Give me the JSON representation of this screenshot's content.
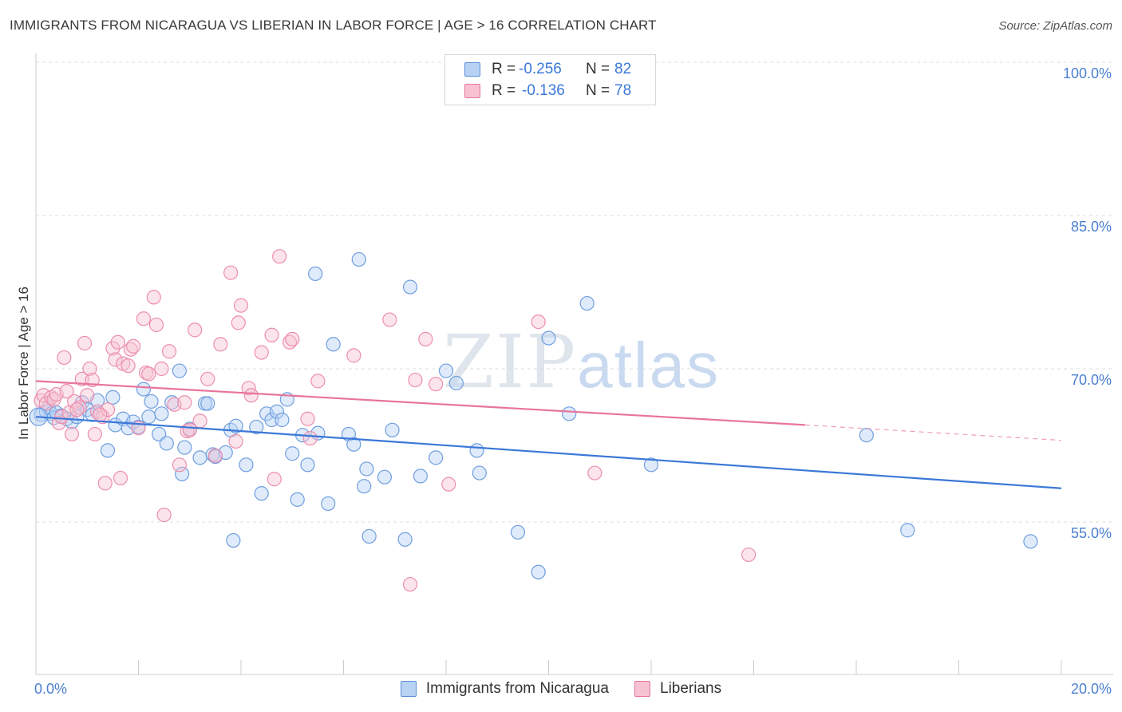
{
  "title": "IMMIGRANTS FROM NICARAGUA VS LIBERIAN IN LABOR FORCE | AGE > 16 CORRELATION CHART",
  "source": "Source: ZipAtlas.com",
  "watermark": {
    "zip": "ZIP",
    "atlas": "atlas"
  },
  "colors": {
    "blue": "#3b78d8",
    "blue_fill": "#b8d2f3",
    "pink": "#e8749a",
    "pink_fill": "#f7c3d3",
    "grid": "#dddddd"
  },
  "legend": {
    "rows": [
      {
        "r_label": "R =",
        "r_value": "-0.256",
        "n_label": "N =",
        "n_value": "82"
      },
      {
        "r_label": "R =",
        "r_value": "-0.136",
        "n_label": "N =",
        "n_value": "78"
      }
    ]
  },
  "bottom_legend": {
    "series1": "Immigrants from Nicaragua",
    "series2": "Liberians"
  },
  "chart_data": {
    "type": "scatter",
    "xlabel": "",
    "ylabel": "In Labor Force | Age > 16",
    "xlim": [
      0,
      20
    ],
    "ylim": [
      40,
      105
    ],
    "x_tick_labels": [
      {
        "value": 0,
        "label": "0.0%"
      },
      {
        "value": 20,
        "label": "20.0%"
      }
    ],
    "y_ticks": [
      {
        "value": 100,
        "label": "100.0%"
      },
      {
        "value": 85,
        "label": "85.0%"
      },
      {
        "value": 70,
        "label": "70.0%"
      },
      {
        "value": 55,
        "label": "55.0%"
      }
    ],
    "grid": "horizontal dashed",
    "series": [
      {
        "name": "Immigrants from Nicaragua",
        "color": "#3b78d8",
        "trend": {
          "x": [
            0,
            20
          ],
          "y": [
            65.3,
            58.3
          ],
          "dashed_from": null
        },
        "points": [
          [
            0.1,
            65.5
          ],
          [
            0.2,
            65.8
          ],
          [
            0.25,
            66.2
          ],
          [
            0.3,
            65.6
          ],
          [
            0.35,
            65.2
          ],
          [
            0.4,
            65.7
          ],
          [
            0.5,
            65.4
          ],
          [
            0.6,
            65.1
          ],
          [
            0.7,
            64.8
          ],
          [
            0.8,
            65.3
          ],
          [
            0.9,
            66.7
          ],
          [
            1.0,
            66.0
          ],
          [
            1.1,
            65.5
          ],
          [
            1.2,
            66.9
          ],
          [
            1.4,
            62.0
          ],
          [
            1.5,
            67.2
          ],
          [
            1.55,
            64.5
          ],
          [
            1.7,
            65.1
          ],
          [
            1.8,
            64.2
          ],
          [
            1.9,
            64.8
          ],
          [
            2.0,
            64.3
          ],
          [
            2.1,
            68.0
          ],
          [
            2.2,
            65.3
          ],
          [
            2.25,
            66.8
          ],
          [
            2.4,
            63.6
          ],
          [
            2.45,
            65.6
          ],
          [
            2.55,
            62.7
          ],
          [
            2.65,
            66.7
          ],
          [
            2.8,
            69.8
          ],
          [
            2.85,
            59.7
          ],
          [
            2.9,
            62.3
          ],
          [
            3.0,
            64.1
          ],
          [
            3.2,
            61.3
          ],
          [
            3.3,
            66.6
          ],
          [
            3.35,
            66.6
          ],
          [
            3.45,
            61.6
          ],
          [
            3.5,
            61.4
          ],
          [
            3.7,
            61.8
          ],
          [
            3.8,
            64.0
          ],
          [
            3.85,
            53.2
          ],
          [
            3.9,
            64.4
          ],
          [
            4.1,
            60.6
          ],
          [
            4.3,
            64.3
          ],
          [
            4.4,
            57.8
          ],
          [
            4.5,
            65.6
          ],
          [
            4.6,
            65.0
          ],
          [
            4.7,
            65.8
          ],
          [
            4.8,
            65.0
          ],
          [
            4.9,
            67.0
          ],
          [
            5.0,
            61.7
          ],
          [
            5.1,
            57.2
          ],
          [
            5.2,
            63.5
          ],
          [
            5.3,
            60.6
          ],
          [
            5.45,
            79.3
          ],
          [
            5.5,
            63.7
          ],
          [
            5.7,
            56.8
          ],
          [
            5.8,
            72.4
          ],
          [
            6.1,
            63.6
          ],
          [
            6.2,
            62.6
          ],
          [
            6.3,
            80.7
          ],
          [
            6.4,
            58.5
          ],
          [
            6.45,
            60.2
          ],
          [
            6.5,
            53.6
          ],
          [
            6.8,
            59.4
          ],
          [
            6.95,
            64.0
          ],
          [
            7.2,
            53.3
          ],
          [
            7.3,
            78.0
          ],
          [
            7.5,
            59.5
          ],
          [
            7.8,
            61.3
          ],
          [
            8.0,
            69.8
          ],
          [
            8.2,
            68.6
          ],
          [
            8.6,
            62.0
          ],
          [
            8.65,
            59.8
          ],
          [
            9.4,
            54.0
          ],
          [
            9.8,
            50.1
          ],
          [
            10.0,
            73.0
          ],
          [
            10.4,
            65.6
          ],
          [
            10.75,
            76.4
          ],
          [
            12.0,
            60.6
          ],
          [
            16.2,
            63.5
          ],
          [
            17.0,
            54.2
          ],
          [
            19.4,
            53.1
          ]
        ]
      },
      {
        "name": "Liberians",
        "color": "#e8749a",
        "trend": {
          "x": [
            0,
            15
          ],
          "y": [
            68.8,
            64.5
          ],
          "dashed_from": 15,
          "dashed_to": [
            20,
            63.0
          ]
        },
        "points": [
          [
            0.1,
            66.9
          ],
          [
            0.15,
            67.4
          ],
          [
            0.2,
            66.6
          ],
          [
            0.3,
            67.2
          ],
          [
            0.35,
            67.0
          ],
          [
            0.4,
            67.5
          ],
          [
            0.45,
            64.7
          ],
          [
            0.5,
            65.3
          ],
          [
            0.55,
            71.1
          ],
          [
            0.65,
            65.7
          ],
          [
            0.7,
            63.6
          ],
          [
            0.75,
            66.8
          ],
          [
            0.85,
            66.2
          ],
          [
            0.9,
            69.0
          ],
          [
            0.95,
            72.5
          ],
          [
            1.0,
            67.4
          ],
          [
            1.05,
            70.0
          ],
          [
            1.1,
            68.9
          ],
          [
            1.15,
            63.6
          ],
          [
            1.2,
            65.8
          ],
          [
            1.3,
            65.3
          ],
          [
            1.35,
            58.8
          ],
          [
            1.4,
            66.0
          ],
          [
            1.5,
            72.0
          ],
          [
            1.55,
            70.9
          ],
          [
            1.6,
            72.6
          ],
          [
            1.65,
            59.3
          ],
          [
            1.7,
            70.5
          ],
          [
            1.8,
            70.3
          ],
          [
            1.85,
            71.9
          ],
          [
            1.9,
            72.2
          ],
          [
            2.0,
            64.2
          ],
          [
            2.1,
            74.9
          ],
          [
            2.15,
            69.6
          ],
          [
            2.2,
            69.5
          ],
          [
            2.3,
            77.0
          ],
          [
            2.35,
            74.3
          ],
          [
            2.45,
            70.0
          ],
          [
            2.5,
            55.7
          ],
          [
            2.6,
            71.7
          ],
          [
            2.7,
            66.5
          ],
          [
            2.8,
            60.6
          ],
          [
            2.9,
            66.7
          ],
          [
            2.95,
            63.9
          ],
          [
            3.1,
            73.8
          ],
          [
            3.2,
            64.9
          ],
          [
            3.35,
            69.0
          ],
          [
            3.5,
            61.5
          ],
          [
            3.6,
            72.4
          ],
          [
            3.8,
            79.4
          ],
          [
            3.9,
            62.9
          ],
          [
            3.95,
            74.5
          ],
          [
            4.0,
            76.2
          ],
          [
            4.15,
            68.1
          ],
          [
            4.2,
            67.4
          ],
          [
            4.4,
            71.6
          ],
          [
            4.6,
            73.3
          ],
          [
            4.65,
            59.2
          ],
          [
            4.75,
            81.0
          ],
          [
            4.95,
            72.6
          ],
          [
            5.0,
            72.9
          ],
          [
            5.3,
            65.1
          ],
          [
            5.35,
            63.2
          ],
          [
            5.5,
            68.8
          ],
          [
            6.2,
            71.3
          ],
          [
            6.9,
            74.8
          ],
          [
            7.3,
            48.9
          ],
          [
            7.4,
            68.9
          ],
          [
            7.6,
            72.9
          ],
          [
            7.8,
            68.5
          ],
          [
            8.05,
            58.7
          ],
          [
            9.8,
            74.6
          ],
          [
            10.9,
            59.8
          ],
          [
            13.9,
            51.8
          ],
          [
            0.6,
            67.8
          ],
          [
            1.25,
            65.5
          ],
          [
            0.8,
            66.0
          ],
          [
            3.0,
            64.0
          ]
        ]
      }
    ]
  }
}
